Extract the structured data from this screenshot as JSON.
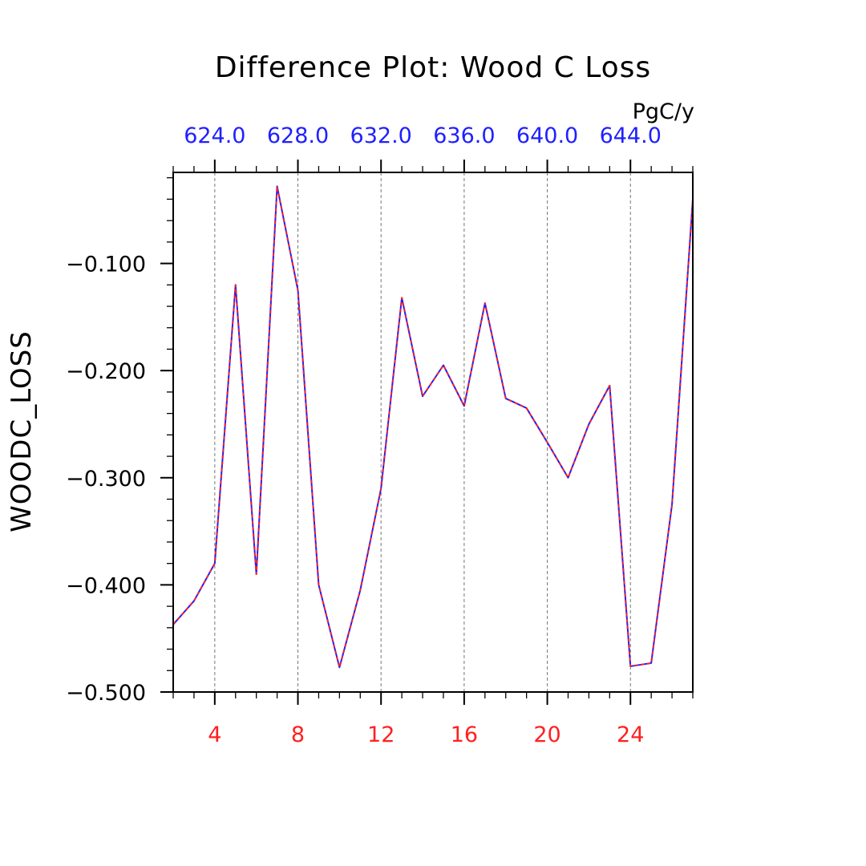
{
  "chart_data": {
    "type": "line",
    "title": "Difference Plot: Wood C Loss",
    "units": "PgC/y",
    "ylabel": "WOODC_LOSS",
    "xlabel": "",
    "xlim": [
      2,
      27
    ],
    "ylim": [
      -0.5,
      -0.015
    ],
    "bottom_axis": {
      "ticks": [
        4,
        8,
        12,
        16,
        20,
        24
      ],
      "tick_labels": [
        "4",
        "8",
        "12",
        "16",
        "20",
        "24"
      ],
      "color": "#ff2020"
    },
    "top_axis": {
      "ticks": [
        4,
        8,
        12,
        16,
        20,
        24
      ],
      "tick_labels": [
        "624.0",
        "628.0",
        "632.0",
        "636.0",
        "640.0",
        "644.0"
      ],
      "color": "#2020ff"
    },
    "y_ticks": [
      -0.5,
      -0.4,
      -0.3,
      -0.2,
      -0.1
    ],
    "y_tick_labels": [
      "−0.500",
      "−0.400",
      "−0.300",
      "−0.200",
      "−0.100"
    ],
    "grid": "vertical dashed at major x ticks",
    "x": [
      2,
      3,
      4,
      5,
      6,
      7,
      8,
      9,
      10,
      11,
      12,
      13,
      14,
      15,
      16,
      17,
      18,
      19,
      20,
      21,
      22,
      23,
      24,
      25,
      26,
      27
    ],
    "series": [
      {
        "color": "#2020ff",
        "style": "solid",
        "values": [
          -0.437,
          -0.415,
          -0.38,
          -0.12,
          -0.39,
          -0.028,
          -0.125,
          -0.4,
          -0.477,
          -0.405,
          -0.31,
          -0.132,
          -0.224,
          -0.195,
          -0.233,
          -0.137,
          -0.226,
          -0.235,
          -0.267,
          -0.3,
          -0.25,
          -0.214,
          -0.476,
          -0.473,
          -0.325,
          -0.04
        ]
      },
      {
        "color": "#ff2020",
        "style": "dashed",
        "values": [
          -0.437,
          -0.415,
          -0.38,
          -0.12,
          -0.39,
          -0.028,
          -0.125,
          -0.4,
          -0.477,
          -0.405,
          -0.31,
          -0.132,
          -0.224,
          -0.195,
          -0.233,
          -0.137,
          -0.226,
          -0.235,
          -0.267,
          -0.3,
          -0.25,
          -0.214,
          -0.476,
          -0.473,
          -0.325,
          -0.04
        ]
      }
    ]
  }
}
